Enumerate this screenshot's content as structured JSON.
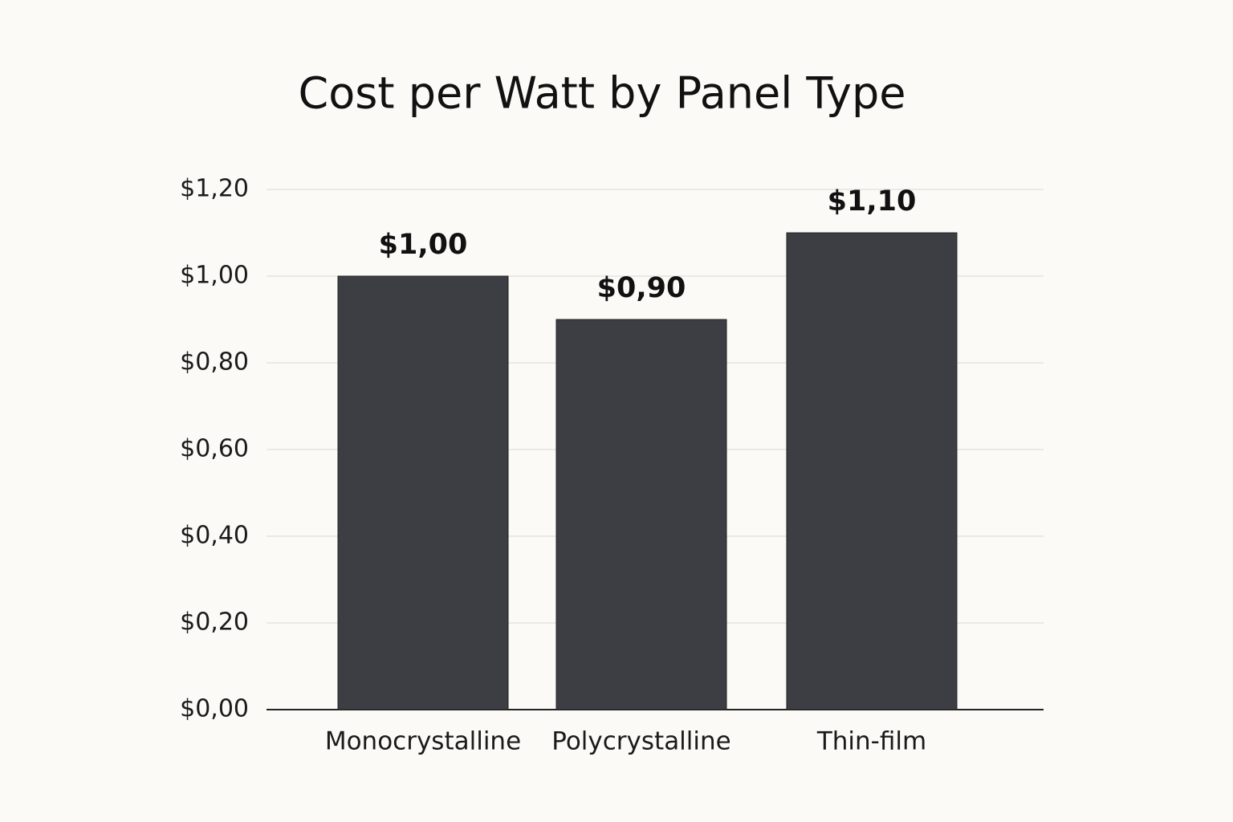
{
  "chart_data": {
    "type": "bar",
    "title": "Cost per Watt by Panel Type",
    "categories": [
      "Monocrystalline",
      "Polycrystalline",
      "Thin-film"
    ],
    "values": [
      1.0,
      0.9,
      1.1
    ],
    "value_labels": [
      "$1,00",
      "$0,90",
      "$1,10"
    ],
    "color": "#3c3e43",
    "ylim": [
      0,
      1.2
    ],
    "yticks": [
      {
        "value": 0,
        "label": "$0,00"
      },
      {
        "value": 0.2,
        "label": "$0,20"
      },
      {
        "value": 0.4,
        "label": "$0,40"
      },
      {
        "value": 0.6,
        "label": "$0,60"
      },
      {
        "value": 0.8,
        "label": "$0,80"
      },
      {
        "value": 1.0,
        "label": "$1,00"
      },
      {
        "value": 1.2,
        "label": "$1,20"
      }
    ],
    "grid": true
  }
}
